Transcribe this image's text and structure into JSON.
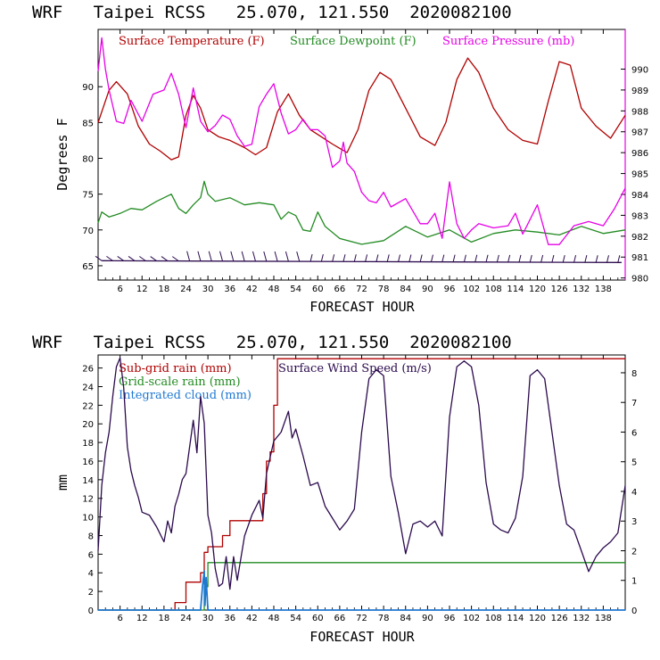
{
  "panels": [
    {
      "title": "WRF   Taipei RCSS   25.070, 121.550  2020082100",
      "xlabel": "FORECAST HOUR",
      "ylabel": "Degrees F",
      "legend": [
        {
          "label": "Surface Temperature (F)",
          "color": "#b00000"
        },
        {
          "label": "Surface Dewpoint (F)",
          "color": "#228b22"
        },
        {
          "label": "Surface Pressure (mb)",
          "color": "#e600e6"
        }
      ]
    },
    {
      "title": "WRF   Taipei RCSS   25.070, 121.550  2020082100",
      "xlabel": "FORECAST HOUR",
      "ylabel": "mm",
      "legend": [
        {
          "label": "Sub-grid rain (mm)",
          "color": "#b00000"
        },
        {
          "label": "Grid-scale rain (mm)",
          "color": "#228b22"
        },
        {
          "label": "Integrated cloud (mm)",
          "color": "#1e78d2"
        },
        {
          "label": "Surface Wind Speed (m/s)",
          "color": "#2b0a4d"
        }
      ]
    }
  ],
  "chart_data": [
    {
      "type": "line",
      "title": "WRF   Taipei RCSS   25.070, 121.550  2020082100",
      "xlabel": "FORECAST HOUR",
      "ylabel": "Degrees F",
      "xlim": [
        0,
        144
      ],
      "ylim": [
        63,
        98
      ],
      "y2lim": [
        979.9,
        991.9
      ],
      "xticks": [
        "6",
        "12",
        "18",
        "24",
        "30",
        "36",
        "42",
        "48",
        "54",
        "60",
        "66",
        "72",
        "78",
        "84",
        "90",
        "96",
        "102",
        "108",
        "114",
        "120",
        "126",
        "132",
        "138"
      ],
      "xtick_values": [
        6,
        12,
        18,
        24,
        30,
        36,
        42,
        48,
        54,
        60,
        66,
        72,
        78,
        84,
        90,
        96,
        102,
        108,
        114,
        120,
        126,
        132,
        138
      ],
      "yticks": [
        65,
        70,
        75,
        80,
        85,
        90
      ],
      "y2ticks": [
        980,
        981,
        982,
        983,
        984,
        985,
        986,
        987,
        988,
        989,
        990
      ],
      "series": [
        {
          "name": "Surface Temperature (F)",
          "axis": "left",
          "color": "#b00000",
          "x": [
            0,
            3,
            5,
            8,
            11,
            14,
            17,
            20,
            22,
            24,
            26,
            28,
            30,
            33,
            36,
            40,
            43,
            46,
            49,
            52,
            55,
            58,
            61,
            64,
            68,
            71,
            74,
            77,
            80,
            84,
            88,
            92,
            95,
            98,
            101,
            104,
            108,
            112,
            116,
            120,
            123,
            126,
            129,
            132,
            136,
            140,
            144
          ],
          "y": [
            85,
            89.5,
            90.7,
            89,
            84.5,
            82,
            81,
            79.8,
            80.2,
            86,
            88.8,
            87,
            84,
            83,
            82.5,
            81.5,
            80.5,
            81.5,
            86.5,
            89,
            86,
            84,
            83,
            82,
            80.8,
            84,
            89.5,
            92,
            91,
            87,
            83,
            81.8,
            85,
            91,
            94,
            92,
            87,
            84,
            82.5,
            82,
            88,
            93.5,
            93,
            87,
            84.5,
            82.8,
            86
          ]
        },
        {
          "name": "Surface Dewpoint (F)",
          "axis": "left",
          "color": "#228b22",
          "x": [
            0,
            1,
            3,
            6,
            9,
            12,
            16,
            20,
            22,
            24,
            26,
            28,
            29,
            30,
            32,
            36,
            40,
            44,
            48,
            50,
            52,
            54,
            56,
            58,
            60,
            62,
            66,
            72,
            78,
            84,
            90,
            96,
            102,
            108,
            114,
            120,
            126,
            132,
            138,
            144
          ],
          "y": [
            71,
            72.5,
            71.8,
            72.3,
            73,
            72.8,
            74,
            75,
            73,
            72.3,
            73.5,
            74.5,
            76.8,
            75,
            74,
            74.5,
            73.5,
            73.8,
            73.5,
            71.5,
            72.5,
            72,
            70,
            69.8,
            72.5,
            70.5,
            68.8,
            68,
            68.5,
            70.5,
            69,
            70,
            68.3,
            69.5,
            70,
            69.7,
            69.3,
            70.5,
            69.5,
            70
          ]
        },
        {
          "name": "Surface Pressure (mb)",
          "axis": "right",
          "color": "#e600e6",
          "x": [
            0,
            1,
            2,
            3,
            5,
            7,
            9,
            12,
            15,
            18,
            20,
            22,
            24,
            26,
            28,
            30,
            32,
            34,
            36,
            38,
            40,
            42,
            44,
            46,
            48,
            50,
            52,
            54,
            56,
            58,
            60,
            62,
            64,
            66,
            67,
            68,
            70,
            72,
            74,
            76,
            78,
            80,
            84,
            88,
            90,
            92,
            94,
            96,
            98,
            100,
            102,
            104,
            108,
            112,
            114,
            116,
            120,
            123,
            126,
            130,
            134,
            138,
            141,
            144
          ],
          "y": [
            989.9,
            991.5,
            990,
            989,
            987.5,
            987.4,
            988.5,
            987.5,
            988.8,
            989,
            989.8,
            988.8,
            987.2,
            989.1,
            987.5,
            987,
            987.3,
            987.8,
            987.6,
            986.8,
            986.3,
            986.4,
            988.2,
            988.8,
            989.3,
            987.9,
            986.9,
            987.1,
            987.6,
            987.1,
            987.1,
            986.8,
            985.3,
            985.6,
            986.5,
            985.5,
            985.1,
            984.1,
            983.7,
            983.6,
            984.1,
            983.4,
            983.8,
            982.6,
            982.6,
            983.1,
            981.9,
            984.6,
            982.6,
            981.9,
            982.3,
            982.6,
            982.4,
            982.5,
            983.1,
            982.1,
            983.5,
            981.6,
            981.6,
            982.5,
            982.7,
            982.5,
            983.3,
            984.3
          ]
        }
      ],
      "wind_barbs": {
        "start_hour": 1,
        "end_hour": 143,
        "step_hours": 3,
        "level": 65.7
      }
    },
    {
      "type": "line",
      "title": "WRF   Taipei RCSS   25.070, 121.550  2020082100",
      "xlabel": "FORECAST HOUR",
      "ylabel": "mm",
      "xlim": [
        0,
        144
      ],
      "ylim": [
        0,
        27.4
      ],
      "y2lim": [
        0,
        8.6
      ],
      "xticks": [
        "6",
        "12",
        "18",
        "24",
        "30",
        "36",
        "42",
        "48",
        "54",
        "60",
        "66",
        "72",
        "78",
        "84",
        "90",
        "96",
        "102",
        "108",
        "114",
        "120",
        "126",
        "132",
        "138"
      ],
      "xtick_values": [
        6,
        12,
        18,
        24,
        30,
        36,
        42,
        48,
        54,
        60,
        66,
        72,
        78,
        84,
        90,
        96,
        102,
        108,
        114,
        120,
        126,
        132,
        138
      ],
      "yticks": [
        0,
        2,
        4,
        6,
        8,
        10,
        12,
        14,
        16,
        18,
        20,
        22,
        24,
        26
      ],
      "y2ticks": [
        0,
        1,
        2,
        3,
        4,
        5,
        6,
        7,
        8
      ],
      "series": [
        {
          "name": "Sub-grid rain (mm)",
          "axis": "left",
          "step": true,
          "color": "#b00000",
          "x": [
            0,
            21,
            24,
            28,
            29,
            30,
            33,
            34,
            36,
            44,
            45,
            46,
            47,
            48,
            49,
            144
          ],
          "y": [
            0,
            0.8,
            3,
            4,
            6.2,
            6.8,
            6.8,
            8,
            9.6,
            9.6,
            12.5,
            16,
            17,
            22,
            27,
            27
          ]
        },
        {
          "name": "Grid-scale rain (mm)",
          "axis": "left",
          "step": true,
          "color": "#228b22",
          "x": [
            0,
            28,
            29,
            30,
            144
          ],
          "y": [
            0,
            0,
            2.5,
            5.1,
            5.1
          ]
        },
        {
          "name": "Integrated cloud (mm)",
          "axis": "left",
          "spike": true,
          "color": "#1e78d2",
          "x": [
            0,
            28,
            28.5,
            29,
            29.2,
            29.5,
            30,
            144
          ],
          "y": [
            0,
            0,
            2.5,
            4.2,
            0.5,
            3.5,
            0,
            0
          ]
        },
        {
          "name": "Surface Wind Speed (m/s)",
          "axis": "right",
          "color": "#2b0a4d",
          "x": [
            0,
            1,
            2,
            3,
            4,
            5,
            6,
            7,
            8,
            9,
            10,
            11,
            12,
            14,
            16,
            18,
            19,
            20,
            21,
            22,
            23,
            24,
            25,
            26,
            27,
            28,
            29,
            30,
            31,
            32,
            33,
            34,
            35,
            36,
            37,
            38,
            40,
            42,
            44,
            45,
            46,
            48,
            50,
            52,
            53,
            54,
            56,
            58,
            60,
            62,
            64,
            66,
            68,
            70,
            72,
            74,
            76,
            78,
            80,
            82,
            84,
            86,
            88,
            90,
            92,
            94,
            96,
            98,
            100,
            102,
            104,
            106,
            108,
            110,
            112,
            114,
            116,
            118,
            120,
            122,
            124,
            126,
            128,
            130,
            132,
            134,
            136,
            138,
            140,
            142,
            144
          ],
          "y": [
            2,
            4.2,
            5.3,
            6,
            7.2,
            8.2,
            8.5,
            7.5,
            5.5,
            4.7,
            4.2,
            3.8,
            3.3,
            3.2,
            2.8,
            2.3,
            3,
            2.6,
            3.5,
            3.9,
            4.4,
            4.6,
            5.5,
            6.4,
            5.3,
            7.2,
            6.3,
            3.2,
            2.6,
            1.4,
            0.8,
            0.9,
            1.8,
            0.7,
            1.8,
            1,
            2.5,
            3.2,
            3.7,
            3.1,
            4.6,
            5.7,
            6,
            6.7,
            5.8,
            6.1,
            5.2,
            4.2,
            4.3,
            3.5,
            3.1,
            2.7,
            3,
            3.4,
            6,
            7.8,
            8.1,
            7.9,
            4.5,
            3.3,
            1.9,
            2.9,
            3,
            2.8,
            3,
            2.5,
            6.5,
            8.2,
            8.4,
            8.2,
            6.9,
            4.3,
            2.9,
            2.7,
            2.6,
            3.1,
            4.5,
            7.9,
            8.1,
            7.8,
            6,
            4.2,
            2.9,
            2.7,
            2,
            1.3,
            1.8,
            2.1,
            2.3,
            2.6,
            4.2
          ]
        }
      ]
    }
  ]
}
